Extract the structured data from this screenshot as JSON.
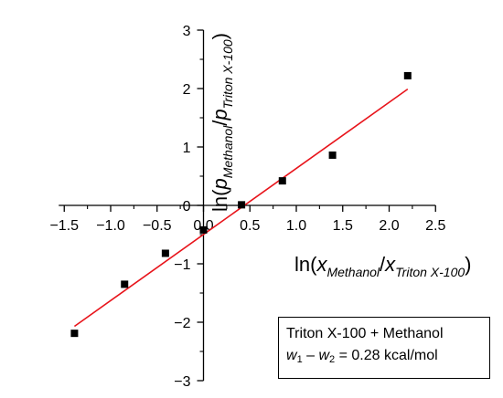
{
  "chart_data": {
    "type": "scatter",
    "title": "",
    "xlabel": {
      "prefix": "ln(",
      "var1": "x",
      "sub1": "Methanol",
      "sep": "/",
      "var2": "x",
      "sub2": "Triton X-100",
      "suffix": ")"
    },
    "ylabel": {
      "prefix": "ln(",
      "var1": "p",
      "sub1": "Methanol",
      "sep": "/",
      "var2": "p",
      "sub2": "Triton X-100",
      "suffix": ")"
    },
    "xlim": [
      -1.5,
      2.5
    ],
    "ylim": [
      -3,
      3
    ],
    "xticks": [
      -1.5,
      -1.0,
      -0.5,
      0.0,
      0.5,
      1.0,
      1.5,
      2.0,
      2.5
    ],
    "xtick_labels": [
      "−1.5",
      "−1.0",
      "−0.5",
      "0.0",
      "0.5",
      "1.0",
      "1.5",
      "2.0",
      "2.5"
    ],
    "yticks": [
      -3,
      -2,
      -1,
      0,
      1,
      2,
      3
    ],
    "ytick_labels": [
      "−3",
      "−2",
      "−1",
      "0",
      "1",
      "2",
      "3"
    ],
    "grid": false,
    "series": [
      {
        "kind": "points",
        "marker": "square",
        "color": "#000000",
        "x": [
          -1.39,
          -0.85,
          -0.41,
          0.0,
          0.41,
          0.85,
          1.39,
          2.2
        ],
        "y": [
          -2.19,
          -1.35,
          -0.82,
          -0.42,
          0.01,
          0.42,
          0.86,
          2.22
        ]
      },
      {
        "kind": "fit-line",
        "color": "#e8141b",
        "x": [
          -1.39,
          2.2
        ],
        "y": [
          -2.07,
          1.99
        ]
      }
    ]
  },
  "legend": {
    "line1": "Triton X-100 + Methanol",
    "w1": "w",
    "w1_sub": "1",
    "minus": " – ",
    "w2": "w",
    "w2_sub": "2",
    "value": " = 0.28 kcal/mol"
  }
}
